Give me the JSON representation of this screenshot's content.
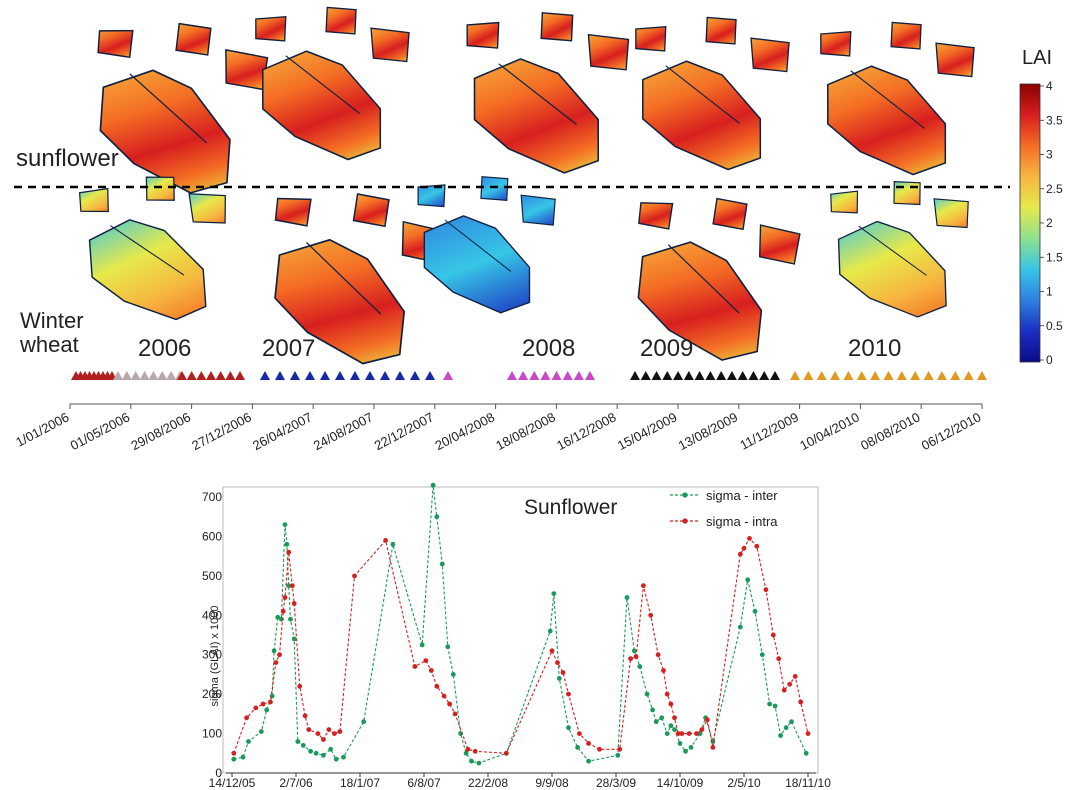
{
  "map_panel": {
    "crop_labels": [
      "sunflower",
      "Winter wheat"
    ],
    "years": [
      "2006",
      "2007",
      "2008",
      "2009",
      "2010"
    ],
    "colorbar": {
      "title": "LAI",
      "ticks": [
        "4",
        "3.5",
        "3",
        "2.5",
        "2",
        "1.5",
        "1",
        "0.5",
        "0"
      ],
      "colors": [
        "#8b0000",
        "#d71f1f",
        "#f46d24",
        "#f6b640",
        "#e7e94a",
        "#8fe08e",
        "#37c6e6",
        "#2f7fe0",
        "#1b2fc2",
        "#0a0a8a"
      ]
    },
    "timeline": {
      "date_ticks": [
        "1/01/2006",
        "01/05/2006",
        "29/08/2006",
        "27/12/2006",
        "26/04/2007",
        "24/08/2007",
        "22/12/2007",
        "20/04/2008",
        "18/08/2008",
        "16/12/2008",
        "15/04/2009",
        "13/08/2009",
        "11/12/2009",
        "10/04/2010",
        "08/08/2010",
        "06/12/2010"
      ],
      "triangle_groups": [
        {
          "color": "#b02020",
          "count": 9
        },
        {
          "color": "#b8a8ac",
          "count": 8
        },
        {
          "color": "#b02020",
          "count": 7
        },
        {
          "color": "#1a28a8",
          "count": 12
        },
        {
          "color": "#c848c8",
          "count": 1
        },
        {
          "color": "#c848c8",
          "count": 8
        },
        {
          "color": "#111111",
          "count": 14
        },
        {
          "color": "#e09a20",
          "count": 15
        }
      ]
    }
  },
  "chart_data": {
    "type": "line",
    "title": "Sunflower",
    "ylabel": "sigma (GLAI) x 1000",
    "ylim": [
      0,
      700
    ],
    "yticks": [
      "0",
      "100",
      "200",
      "300",
      "400",
      "500",
      "600",
      "700"
    ],
    "xticks": [
      "14/12/05",
      "2/7/06",
      "18/1/07",
      "6/8/07",
      "22/2/08",
      "9/9/08",
      "28/3/09",
      "14/10/09",
      "2/5/10",
      "18/11/10"
    ],
    "legend_position": "top-right",
    "series": [
      {
        "name": "sigma - inter",
        "color": "#1a9a5a",
        "points": [
          [
            1,
            35
          ],
          [
            6,
            40
          ],
          [
            9,
            80
          ],
          [
            16,
            105
          ],
          [
            19,
            160
          ],
          [
            22,
            195
          ],
          [
            23,
            310
          ],
          [
            25,
            395
          ],
          [
            27,
            390
          ],
          [
            29,
            630
          ],
          [
            30,
            580
          ],
          [
            31,
            475
          ],
          [
            32,
            390
          ],
          [
            34,
            340
          ],
          [
            36,
            80
          ],
          [
            39,
            70
          ],
          [
            43,
            55
          ],
          [
            46,
            50
          ],
          [
            50,
            45
          ],
          [
            54,
            60
          ],
          [
            57,
            35
          ],
          [
            61,
            40
          ],
          [
            72,
            130
          ],
          [
            88,
            580
          ],
          [
            104,
            325
          ],
          [
            110,
            730
          ],
          [
            112,
            650
          ],
          [
            115,
            530
          ],
          [
            118,
            320
          ],
          [
            121,
            250
          ],
          [
            125,
            100
          ],
          [
            128,
            50
          ],
          [
            131,
            30
          ],
          [
            135,
            25
          ],
          [
            150,
            50
          ],
          [
            174,
            360
          ],
          [
            176,
            455
          ],
          [
            179,
            240
          ],
          [
            184,
            115
          ],
          [
            189,
            65
          ],
          [
            195,
            30
          ],
          [
            211,
            45
          ],
          [
            216,
            445
          ],
          [
            220,
            310
          ],
          [
            223,
            270
          ],
          [
            227,
            200
          ],
          [
            230,
            160
          ],
          [
            232,
            130
          ],
          [
            235,
            140
          ],
          [
            238,
            100
          ],
          [
            240,
            120
          ],
          [
            242,
            110
          ],
          [
            245,
            75
          ],
          [
            248,
            55
          ],
          [
            251,
            65
          ],
          [
            256,
            100
          ],
          [
            259,
            140
          ],
          [
            263,
            80
          ],
          [
            278,
            370
          ],
          [
            282,
            490
          ],
          [
            286,
            410
          ],
          [
            290,
            300
          ],
          [
            294,
            175
          ],
          [
            297,
            170
          ],
          [
            300,
            95
          ],
          [
            303,
            115
          ],
          [
            306,
            130
          ],
          [
            314,
            50
          ]
        ]
      },
      {
        "name": "sigma - intra",
        "color": "#d42020",
        "points": [
          [
            1,
            50
          ],
          [
            8,
            140
          ],
          [
            13,
            165
          ],
          [
            17,
            175
          ],
          [
            21,
            180
          ],
          [
            24,
            280
          ],
          [
            26,
            300
          ],
          [
            28,
            410
          ],
          [
            29,
            445
          ],
          [
            31,
            560
          ],
          [
            33,
            475
          ],
          [
            34,
            430
          ],
          [
            37,
            220
          ],
          [
            40,
            145
          ],
          [
            42,
            110
          ],
          [
            47,
            100
          ],
          [
            50,
            85
          ],
          [
            53,
            110
          ],
          [
            56,
            100
          ],
          [
            59,
            105
          ],
          [
            67,
            500
          ],
          [
            84,
            590
          ],
          [
            100,
            270
          ],
          [
            106,
            285
          ],
          [
            109,
            260
          ],
          [
            112,
            220
          ],
          [
            116,
            195
          ],
          [
            119,
            175
          ],
          [
            122,
            150
          ],
          [
            129,
            60
          ],
          [
            133,
            55
          ],
          [
            150,
            50
          ],
          [
            175,
            310
          ],
          [
            178,
            280
          ],
          [
            181,
            255
          ],
          [
            184,
            200
          ],
          [
            190,
            100
          ],
          [
            195,
            75
          ],
          [
            201,
            60
          ],
          [
            212,
            60
          ],
          [
            218,
            290
          ],
          [
            221,
            295
          ],
          [
            225,
            475
          ],
          [
            229,
            400
          ],
          [
            233,
            300
          ],
          [
            236,
            260
          ],
          [
            238,
            200
          ],
          [
            240,
            175
          ],
          [
            242,
            140
          ],
          [
            244,
            100
          ],
          [
            246,
            100
          ],
          [
            250,
            100
          ],
          [
            254,
            100
          ],
          [
            257,
            110
          ],
          [
            260,
            135
          ],
          [
            263,
            65
          ],
          [
            278,
            555
          ],
          [
            280,
            570
          ],
          [
            283,
            595
          ],
          [
            287,
            575
          ],
          [
            292,
            465
          ],
          [
            296,
            350
          ],
          [
            299,
            290
          ],
          [
            302,
            210
          ],
          [
            305,
            225
          ],
          [
            308,
            245
          ],
          [
            311,
            180
          ],
          [
            315,
            100
          ]
        ]
      }
    ]
  }
}
